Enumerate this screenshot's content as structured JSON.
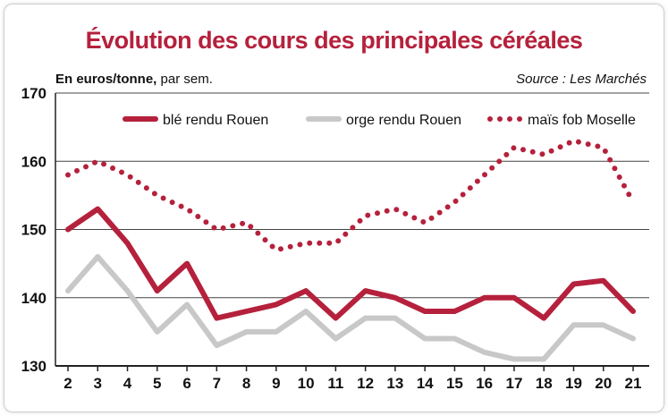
{
  "chart_data": {
    "type": "line",
    "title": "Évolution des cours des principales céréales",
    "unit_label_bold": "En euros/tonne,",
    "unit_label_rest": " par sem.",
    "source": "Source : Les Marchés",
    "x": [
      2,
      3,
      4,
      5,
      6,
      7,
      8,
      9,
      10,
      11,
      12,
      13,
      14,
      15,
      16,
      17,
      18,
      19,
      20,
      21
    ],
    "ylim": [
      130,
      170
    ],
    "yticks": [
      130,
      140,
      150,
      160,
      170
    ],
    "grid": true,
    "legend_position": "top",
    "series": [
      {
        "name": "blé rendu Rouen",
        "color": "#b5213c",
        "style": "solid",
        "values": [
          150,
          153,
          148,
          141,
          145,
          137,
          138,
          139,
          141,
          137,
          141,
          140,
          138,
          138,
          140,
          140,
          137,
          142,
          142.5,
          138
        ]
      },
      {
        "name": "orge rendu Rouen",
        "color": "#c8c8c8",
        "style": "solid",
        "values": [
          141,
          146,
          141,
          135,
          139,
          133,
          135,
          135,
          138,
          134,
          137,
          137,
          134,
          134,
          132,
          131,
          131,
          136,
          136,
          134
        ]
      },
      {
        "name": "maïs fob Moselle",
        "color": "#b5213c",
        "style": "dotted",
        "values": [
          158,
          160,
          158,
          155,
          153,
          150,
          151,
          147,
          148,
          148,
          152,
          153,
          151,
          154,
          158,
          162,
          161,
          163,
          162,
          154
        ]
      }
    ]
  }
}
